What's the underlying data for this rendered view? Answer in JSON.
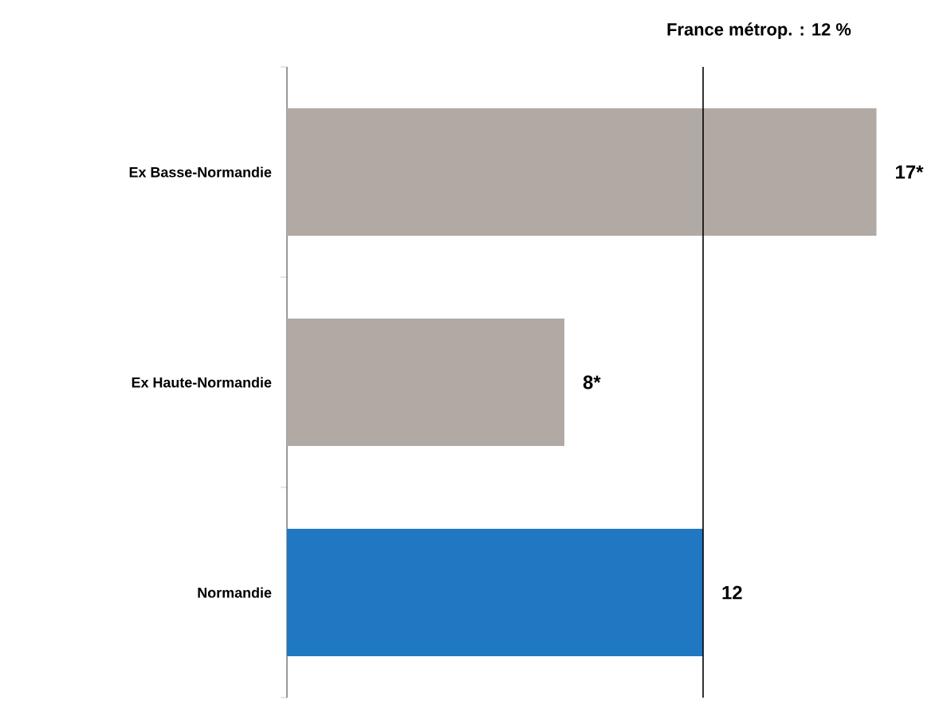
{
  "chart_data": {
    "type": "bar",
    "orientation": "horizontal",
    "categories": [
      "Ex Basse-Normandie",
      "Ex Haute-Normandie",
      "Normandie"
    ],
    "values": [
      17,
      8,
      12
    ],
    "colors": [
      "#b1a9a4",
      "#b1a9a4",
      "#1f78c1"
    ],
    "value_labels": [
      "17*",
      "8*",
      "12"
    ],
    "xlim": [
      0,
      17
    ],
    "ref_lines": [
      {
        "axis": "x",
        "value": 12,
        "label": "France métrop. : 12 %",
        "color": "#000000"
      }
    ]
  }
}
